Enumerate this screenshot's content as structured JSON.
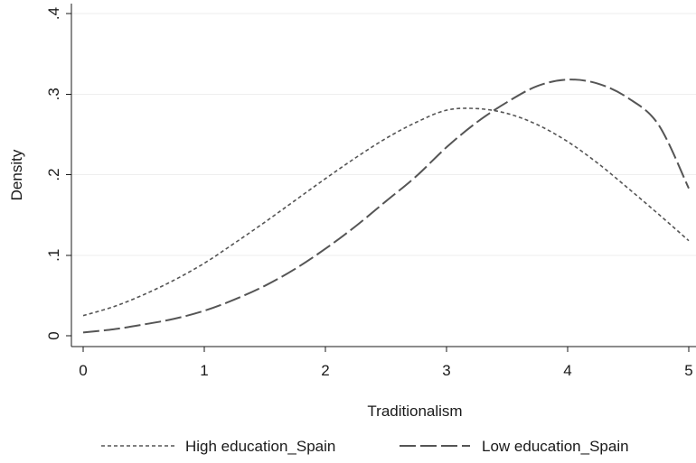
{
  "chart_data": {
    "type": "line",
    "xlabel": "Traditionalism",
    "ylabel": "Density",
    "xlim": [
      0,
      5
    ],
    "ylim": [
      0,
      0.4
    ],
    "xticks": [
      0,
      1,
      2,
      3,
      4,
      5
    ],
    "xtick_labels": [
      "0",
      "1",
      "2",
      "3",
      "4",
      "5"
    ],
    "yticks": [
      0,
      0.1,
      0.2,
      0.3,
      0.4
    ],
    "ytick_labels": [
      "0",
      ".1",
      ".2",
      ".3",
      ".4"
    ],
    "grid": "horizontal",
    "legend_position": "bottom",
    "x": [
      0,
      0.25,
      0.5,
      0.75,
      1,
      1.25,
      1.5,
      1.75,
      2,
      2.25,
      2.5,
      2.75,
      3,
      3.25,
      3.5,
      3.75,
      4,
      4.25,
      4.5,
      4.75,
      5
    ],
    "series": [
      {
        "name": "High education_Spain",
        "dash": "short",
        "color": "#555555",
        "values": [
          0.025,
          0.036,
          0.051,
          0.069,
          0.09,
          0.115,
          0.141,
          0.168,
          0.195,
          0.221,
          0.245,
          0.265,
          0.28,
          0.282,
          0.276,
          0.262,
          0.241,
          0.214,
          0.183,
          0.151,
          0.118
        ]
      },
      {
        "name": "Low education_Spain",
        "dash": "long",
        "color": "#555555",
        "values": [
          0.004,
          0.008,
          0.014,
          0.021,
          0.031,
          0.045,
          0.062,
          0.083,
          0.108,
          0.136,
          0.167,
          0.198,
          0.234,
          0.265,
          0.29,
          0.31,
          0.318,
          0.313,
          0.295,
          0.262,
          0.183
        ]
      }
    ]
  }
}
